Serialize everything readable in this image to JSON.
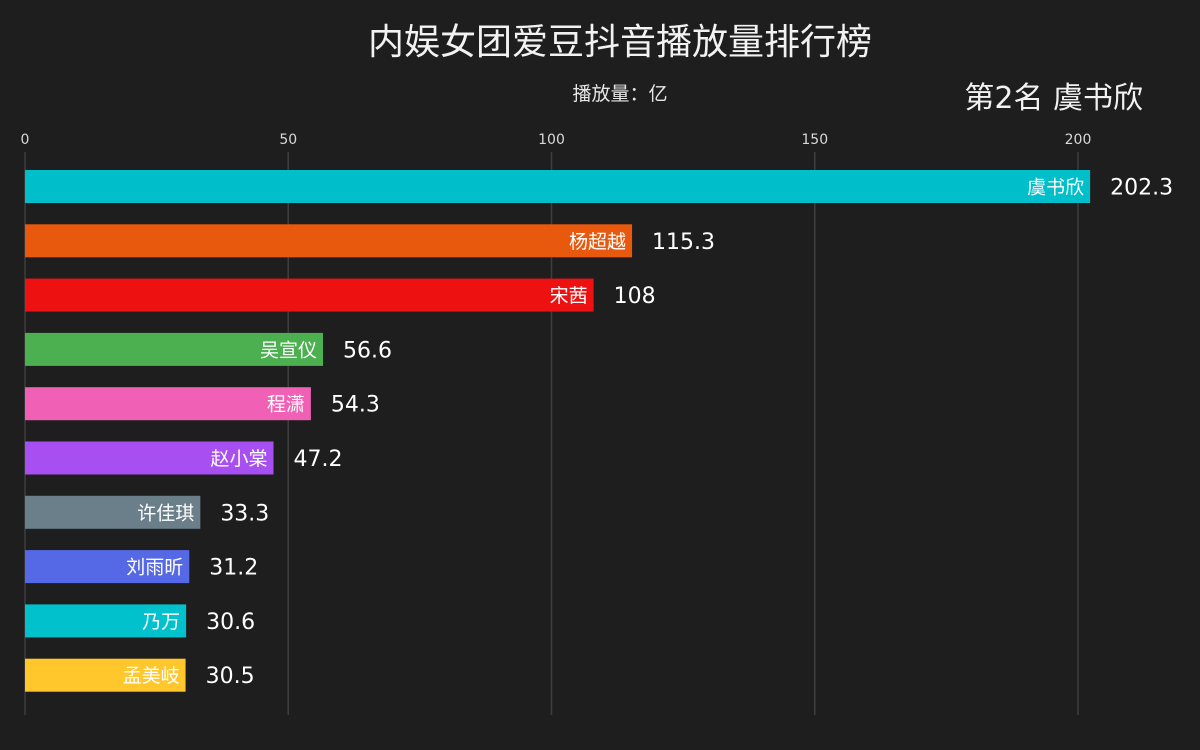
{
  "chart_data": {
    "type": "bar",
    "orientation": "horizontal",
    "title": "内娱女团爱豆抖音播放量排行榜",
    "unit_label": "播放量：亿",
    "annotation": "第2名 虞书欣",
    "xlim": [
      0,
      200
    ],
    "xticks": [
      0,
      50,
      100,
      150,
      200
    ],
    "grid": true,
    "categories": [
      "虞书欣",
      "杨超越",
      "宋茜",
      "吴宣仪",
      "程潇",
      "赵小棠",
      "许佳琪",
      "刘雨昕",
      "乃万",
      "孟美岐"
    ],
    "values": [
      202.3,
      115.3,
      108,
      56.6,
      54.3,
      47.2,
      33.3,
      31.2,
      30.6,
      30.5
    ],
    "value_labels": [
      "202.3",
      "115.3",
      "108",
      "56.6",
      "54.3",
      "47.2",
      "33.3",
      "31.2",
      "30.6",
      "30.5"
    ],
    "colors": [
      "#00bfca",
      "#e8590e",
      "#ee1111",
      "#4caf50",
      "#f060b4",
      "#a74ff0",
      "#6b7f8b",
      "#5569e6",
      "#00c1cc",
      "#ffc72c"
    ],
    "background": "#1f1e1e"
  }
}
